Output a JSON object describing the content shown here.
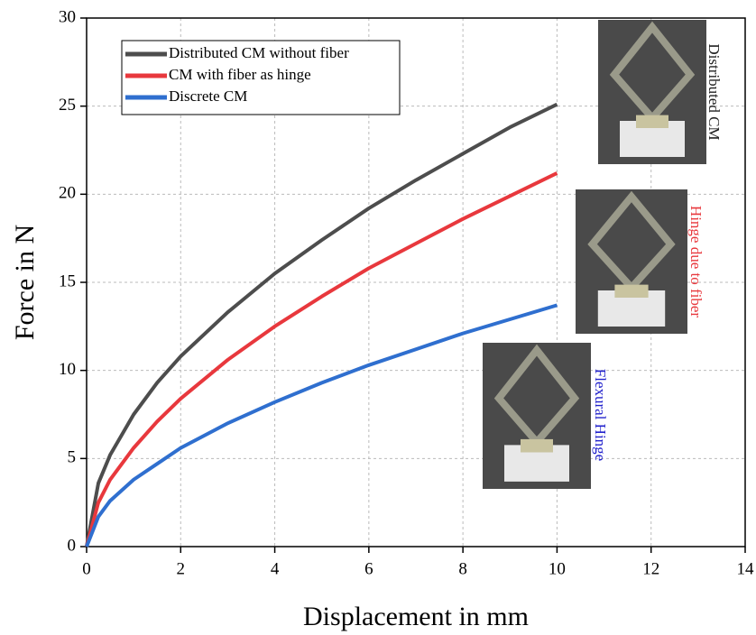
{
  "chart_data": {
    "type": "line",
    "x_label": "Displacement in mm",
    "y_label": "Force in N",
    "x": [
      0,
      0.25,
      0.5,
      1,
      1.5,
      2,
      3,
      4,
      5,
      6,
      7,
      8,
      9,
      10
    ],
    "series": [
      {
        "name": "Distributed CM without fiber",
        "color": "#4d4d4d",
        "values": [
          0,
          3.6,
          5.2,
          7.5,
          9.3,
          10.8,
          13.3,
          15.5,
          17.4,
          19.2,
          20.8,
          22.3,
          23.8,
          25.1
        ]
      },
      {
        "name": "CM with fiber as hinge",
        "color": "#e8383d",
        "values": [
          0,
          2.5,
          3.8,
          5.6,
          7.1,
          8.4,
          10.6,
          12.5,
          14.2,
          15.8,
          17.2,
          18.6,
          19.9,
          21.2
        ]
      },
      {
        "name": "Discrete CM",
        "color": "#2f6fcf",
        "values": [
          0,
          1.7,
          2.6,
          3.8,
          4.7,
          5.6,
          7.0,
          8.2,
          9.3,
          10.3,
          11.2,
          12.1,
          12.9,
          13.7
        ]
      }
    ],
    "xlim": [
      0,
      14
    ],
    "xticks": [
      0,
      2,
      4,
      6,
      8,
      10,
      12,
      14
    ],
    "ylim": [
      0,
      30
    ],
    "yticks": [
      0,
      5,
      10,
      15,
      20,
      25,
      30
    ],
    "grid": true,
    "legend": "upper left",
    "annotations": [
      {
        "text": "Distributed CM",
        "color": "#222222"
      },
      {
        "text": "Hinge due to fiber",
        "color": "#e8383d"
      },
      {
        "text": "Flexural Hinge",
        "color": "#2222cc"
      }
    ]
  }
}
